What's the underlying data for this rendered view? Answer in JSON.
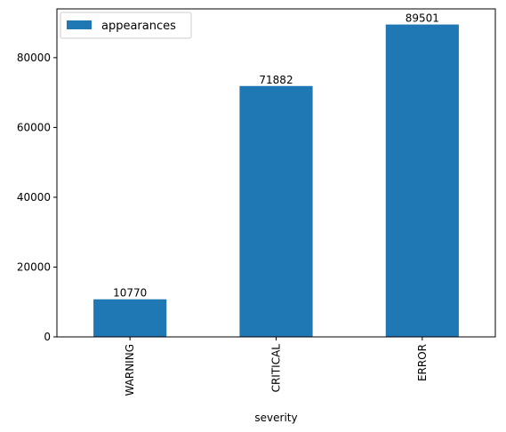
{
  "chart_data": {
    "type": "bar",
    "categories": [
      "WARNING",
      "CRITICAL",
      "ERROR"
    ],
    "series": [
      {
        "name": "appearances",
        "values": [
          10770,
          71882,
          89501
        ]
      }
    ],
    "data_labels": [
      "10770",
      "71882",
      "89501"
    ],
    "xlabel": "severity",
    "ylabel": "",
    "ylim": [
      0,
      93976
    ],
    "yticks": [
      0,
      20000,
      40000,
      60000,
      80000
    ],
    "ytick_labels": [
      "0",
      "20000",
      "40000",
      "60000",
      "80000"
    ],
    "grid": false,
    "legend": "top-left",
    "bar_color": "#1f77b4"
  }
}
